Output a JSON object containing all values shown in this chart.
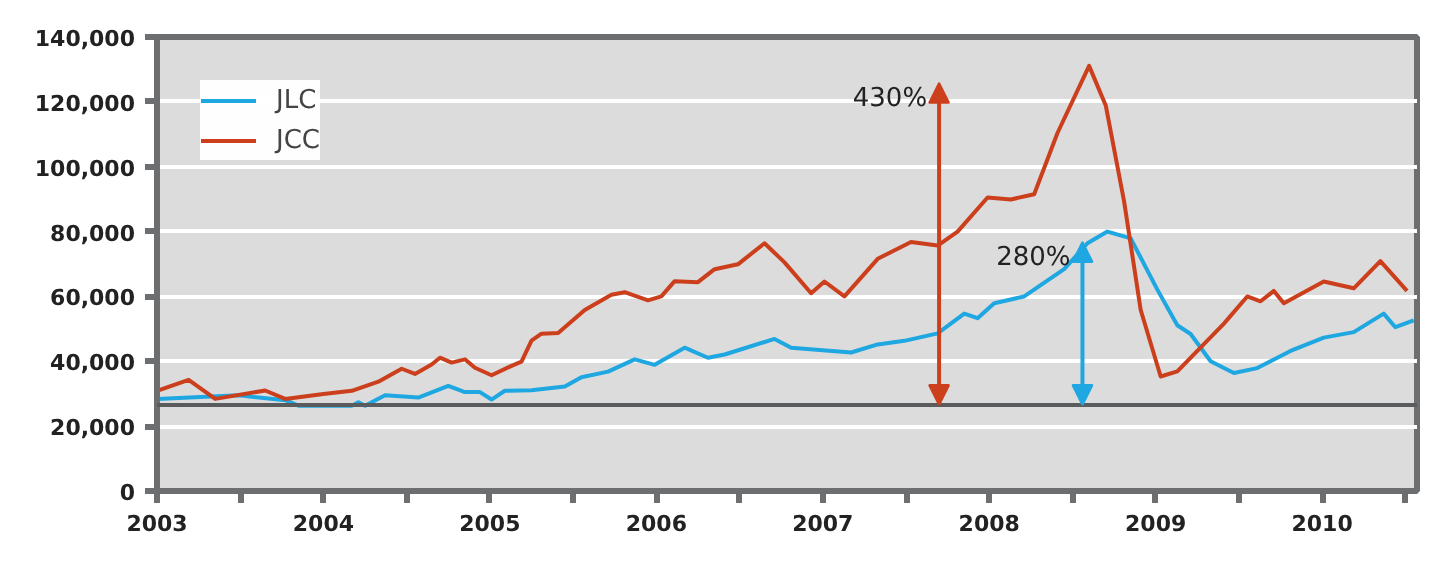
{
  "chart_data": {
    "type": "line",
    "xlim": [
      2003,
      2010.57
    ],
    "ylim": [
      0,
      140000
    ],
    "xticks": [
      2003,
      {
        "value": 2003.5,
        "label": null
      },
      2004,
      {
        "value": 2004.5,
        "label": null
      },
      2005,
      {
        "value": 2005.5,
        "label": null
      },
      2006,
      {
        "value": 2006.5,
        "label": null
      },
      2007,
      {
        "value": 2007.5,
        "label": null
      },
      2008,
      {
        "value": 2008.5,
        "label": null
      },
      2009,
      {
        "value": 2009.5,
        "label": null
      },
      2010,
      {
        "value": 2010.5,
        "label": null
      }
    ],
    "yticks": [
      0,
      {
        "value": 20000,
        "label": "20,000"
      },
      {
        "value": 40000,
        "label": "40,000"
      },
      {
        "value": 60000,
        "label": "60,000"
      },
      {
        "value": 80000,
        "label": "80,000"
      },
      {
        "value": 100000,
        "label": "100,000"
      },
      {
        "value": 120000,
        "label": "120,000"
      },
      {
        "value": 140000,
        "label": "140,000"
      }
    ],
    "grid": "y",
    "legend": "top left",
    "line_style": "solid",
    "series": [
      {
        "name": "JLC",
        "color": "#1ea7e1",
        "x": [
          2003.0,
          2003.49,
          2003.77,
          2003.85,
          2004.17,
          2004.21,
          2004.25,
          2004.37,
          2004.57,
          2004.75,
          2004.85,
          2004.94,
          2005.01,
          2005.09,
          2005.25,
          2005.45,
          2005.55,
          2005.71,
          2005.87,
          2005.99,
          2006.17,
          2006.31,
          2006.41,
          2006.71,
          2006.81,
          2007.17,
          2007.33,
          2007.49,
          2007.69,
          2007.85,
          2007.93,
          2008.03,
          2008.21,
          2008.45,
          2008.59,
          2008.71,
          2008.85,
          2009.01,
          2009.13,
          2009.21,
          2009.33,
          2009.47,
          2009.61,
          2009.81,
          2010.01,
          2010.19,
          2010.37,
          2010.44,
          2010.55
        ],
        "values": [
          28400,
          29500,
          28000,
          26300,
          26300,
          27400,
          26300,
          29500,
          28800,
          32400,
          30500,
          30500,
          28200,
          30900,
          31100,
          32200,
          35100,
          36800,
          40600,
          38900,
          44200,
          41100,
          42100,
          46900,
          44200,
          42700,
          45200,
          46300,
          48600,
          54700,
          53300,
          57900,
          60000,
          68400,
          76400,
          80000,
          77900,
          62100,
          51100,
          48400,
          40000,
          36400,
          37900,
          43200,
          47300,
          49000,
          54700,
          50500,
          52600
        ]
      },
      {
        "name": "JCC",
        "color": "#cc3f1d",
        "x": [
          2003.0,
          2003.19,
          2003.35,
          2003.65,
          2003.77,
          2004.0,
          2004.17,
          2004.33,
          2004.47,
          2004.55,
          2004.65,
          2004.7,
          2004.77,
          2004.85,
          2004.91,
          2005.01,
          2005.13,
          2005.19,
          2005.25,
          2005.31,
          2005.41,
          2005.57,
          2005.73,
          2005.81,
          2005.95,
          2006.03,
          2006.11,
          2006.25,
          2006.35,
          2006.49,
          2006.65,
          2006.77,
          2006.93,
          2007.01,
          2007.13,
          2007.33,
          2007.53,
          2007.69,
          2007.81,
          2007.99,
          2008.13,
          2008.27,
          2008.41,
          2008.6,
          2008.7,
          2008.81,
          2008.91,
          2009.03,
          2009.13,
          2009.41,
          2009.55,
          2009.63,
          2009.71,
          2009.77,
          2010.01,
          2010.19,
          2010.35,
          2010.51
        ],
        "values": [
          30900,
          34300,
          28400,
          31000,
          28400,
          29900,
          30900,
          33700,
          37700,
          36100,
          39000,
          41100,
          39600,
          40600,
          38000,
          35700,
          38600,
          39900,
          46400,
          48500,
          48700,
          55800,
          60500,
          61300,
          58800,
          60000,
          64700,
          64400,
          68400,
          69900,
          76400,
          70500,
          61000,
          64600,
          60000,
          71600,
          76800,
          75700,
          80000,
          90500,
          89900,
          91500,
          110400,
          131100,
          118900,
          89400,
          55800,
          35300,
          36900,
          51600,
          60000,
          58500,
          61700,
          57900,
          64600,
          62500,
          70900,
          61700
        ]
      }
    ],
    "ref_lines": [
      {
        "axis": "y",
        "value": 26500,
        "color": "#5a5b5d"
      }
    ],
    "annotations": [
      "430%",
      "280%"
    ]
  }
}
